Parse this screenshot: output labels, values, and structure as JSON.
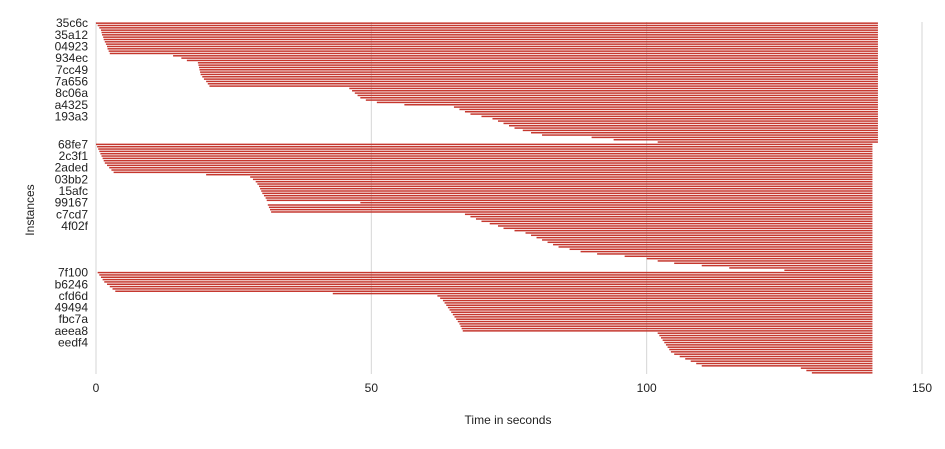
{
  "colors": {
    "bar": "#c5372e",
    "bar_light": "#e8a29b",
    "grid": "#d6d6d6",
    "text": "#222222"
  },
  "chart_data": {
    "type": "bar",
    "orientation": "horizontal",
    "stacked_offset_bars": true,
    "xlabel": "Time in seconds",
    "ylabel": "Instances",
    "xlim": [
      0,
      150
    ],
    "xticks": [
      0,
      50,
      100,
      150
    ],
    "grid": true,
    "legend": "none",
    "groups": [
      {
        "end": 142,
        "starts": [
          0,
          0.3,
          0.6,
          0.9,
          1.0,
          1.1,
          1.3,
          1.4,
          1.6,
          1.8,
          2.0,
          2.1,
          2.3,
          2.5,
          14.0,
          15.5,
          16.5,
          18.5,
          18.6,
          18.7,
          18.8,
          18.9,
          19.0,
          19.3,
          19.6,
          20.0,
          20.3,
          20.6,
          46.0,
          46.5,
          47.0,
          47.5,
          48.0,
          49.0,
          51.0,
          56.0,
          65.0,
          66.0,
          67.0,
          68.0,
          70.0,
          72.0,
          73.0,
          74.0,
          75.0,
          76.0,
          77.5,
          79.0,
          81.0,
          90.0,
          94.0,
          102.0
        ]
      },
      {
        "end": 141,
        "starts": [
          0,
          0.2,
          0.4,
          0.6,
          0.8,
          1.0,
          1.2,
          1.4,
          1.6,
          2.0,
          2.4,
          2.8,
          3.2,
          20.0,
          28.0,
          28.5,
          29.0,
          29.3,
          29.6,
          29.8,
          30.0,
          30.2,
          30.5,
          30.8,
          31.0,
          48.0,
          31.2,
          31.4,
          31.6,
          31.8,
          67.0,
          68.0,
          69.0,
          70.0,
          71.5,
          73.0,
          74.0,
          76.0,
          78.0,
          79.0,
          80.0,
          81.0,
          82.0,
          83.0,
          84.0,
          86.0,
          88.0,
          91.0,
          96.0,
          100.0,
          102.0,
          105.0,
          110.0,
          115.0,
          125.0
        ]
      },
      {
        "end": 141,
        "starts": [
          0.3,
          0.6,
          0.9,
          1.2,
          1.5,
          2.0,
          2.5,
          3.0,
          3.5,
          43.0,
          62.0,
          62.5,
          63.0,
          63.3,
          63.6,
          63.9,
          64.2,
          64.5,
          64.8,
          65.1,
          65.4,
          65.7,
          66.0,
          66.2,
          66.4,
          66.6,
          102.0,
          102.3,
          102.6,
          102.9,
          103.2,
          103.5,
          103.8,
          104.1,
          104.4,
          105.0,
          106.0,
          107.0,
          108.0,
          109.0,
          110.0,
          128.0,
          129.0,
          130.0
        ]
      }
    ],
    "visible_labels": [
      {
        "text": "35c6c",
        "group": 0,
        "index": 0
      },
      {
        "text": "35a12",
        "group": 0,
        "index": 5
      },
      {
        "text": "04923",
        "group": 0,
        "index": 10
      },
      {
        "text": "934ec",
        "group": 0,
        "index": 15
      },
      {
        "text": "7cc49",
        "group": 0,
        "index": 20
      },
      {
        "text": "7a656",
        "group": 0,
        "index": 25
      },
      {
        "text": "8c06a",
        "group": 0,
        "index": 30
      },
      {
        "text": "a4325",
        "group": 0,
        "index": 35
      },
      {
        "text": "193a3",
        "group": 0,
        "index": 40
      },
      {
        "text": "68fe7",
        "group": 1,
        "index": 0
      },
      {
        "text": "2c3f1",
        "group": 1,
        "index": 5
      },
      {
        "text": "2aded",
        "group": 1,
        "index": 10
      },
      {
        "text": "03bb2",
        "group": 1,
        "index": 15
      },
      {
        "text": "15afc",
        "group": 1,
        "index": 20
      },
      {
        "text": "99167",
        "group": 1,
        "index": 25
      },
      {
        "text": "c7cd7",
        "group": 1,
        "index": 30
      },
      {
        "text": "4f02f",
        "group": 1,
        "index": 35
      },
      {
        "text": "7f100",
        "group": 2,
        "index": 0
      },
      {
        "text": "b6246",
        "group": 2,
        "index": 5
      },
      {
        "text": "cfd6d",
        "group": 2,
        "index": 10
      },
      {
        "text": "49494",
        "group": 2,
        "index": 15
      },
      {
        "text": "fbc7a",
        "group": 2,
        "index": 20
      },
      {
        "text": "aeea8",
        "group": 2,
        "index": 25
      },
      {
        "text": "eedf4",
        "group": 2,
        "index": 30
      }
    ]
  }
}
